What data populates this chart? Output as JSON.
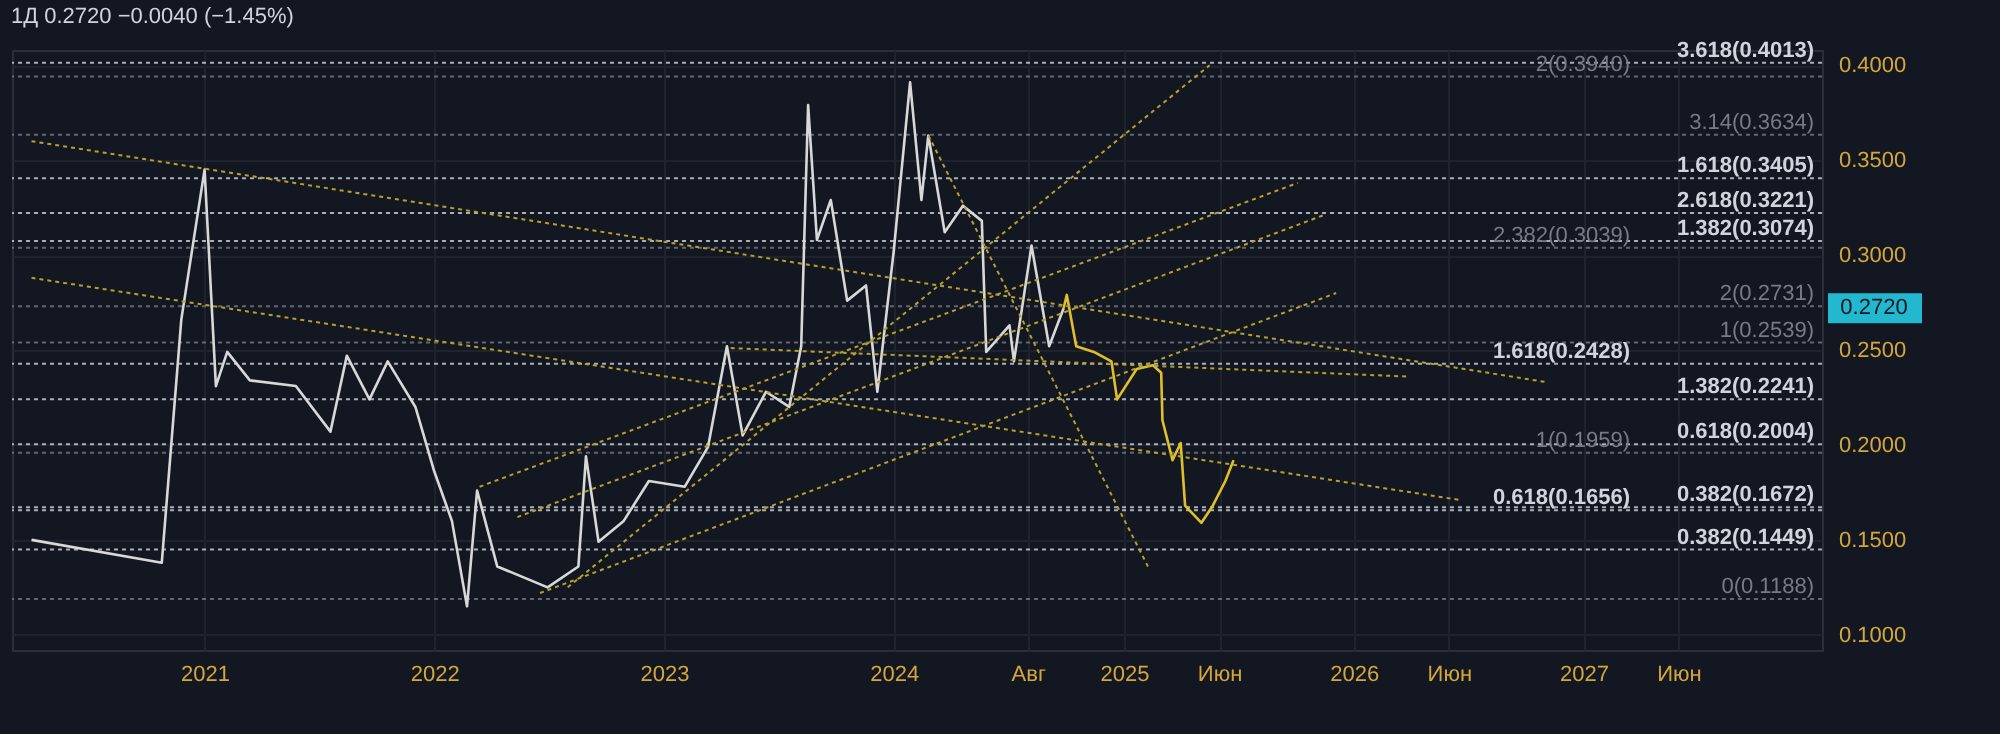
{
  "chart_data": {
    "type": "line",
    "title": "1Д  0.2720  −0.0040 (−1.45%)",
    "xlim": [
      "2020-03-01",
      "2028-01-15"
    ],
    "xticks": [
      {
        "value": "2021-01-01",
        "label": "2021"
      },
      {
        "value": "2022-01-01",
        "label": "2022"
      },
      {
        "value": "2023-01-01",
        "label": "2023"
      },
      {
        "value": "2024-01-01",
        "label": "2024"
      },
      {
        "value": "2024-08-01",
        "label": "Авг"
      },
      {
        "value": "2025-01-01",
        "label": "2025"
      },
      {
        "value": "2025-06-01",
        "label": "Июн"
      },
      {
        "value": "2026-01-01",
        "label": "2026"
      },
      {
        "value": "2026-06-01",
        "label": "Июн"
      },
      {
        "value": "2027-01-01",
        "label": "2027"
      },
      {
        "value": "2027-06-01",
        "label": "Июн"
      }
    ],
    "ylim": [
      0.092,
      0.408
    ],
    "yticks": [
      {
        "value": 0.1,
        "label": "0.1000"
      },
      {
        "value": 0.15,
        "label": "0.1500"
      },
      {
        "value": 0.2,
        "label": "0.2000"
      },
      {
        "value": 0.25,
        "label": "0.2500"
      },
      {
        "value": 0.3,
        "label": "0.3000"
      },
      {
        "value": 0.35,
        "label": "0.3500"
      },
      {
        "value": 0.4,
        "label": "0.4000"
      }
    ],
    "grid": true,
    "series": [
      {
        "color": "#d8d8d8",
        "x": [
          "2020-04-01",
          "2020-10-25",
          "2020-11-25",
          "2021-01-01",
          "2021-01-19",
          "2021-02-06",
          "2021-03-14",
          "2021-05-26",
          "2021-07-20",
          "2021-08-15",
          "2021-09-20",
          "2021-10-19",
          "2021-12-02",
          "2022-01-01",
          "2022-01-29",
          "2022-02-22",
          "2022-03-10",
          "2022-04-11",
          "2022-06-30",
          "2022-08-18",
          "2022-08-30",
          "2022-09-19",
          "2022-10-29",
          "2022-12-08",
          "2023-02-03",
          "2023-03-12",
          "2023-04-11",
          "2023-05-06",
          "2023-06-12",
          "2023-07-19",
          "2023-08-07",
          "2023-08-18",
          "2023-09-01",
          "2023-09-23",
          "2023-10-19",
          "2023-11-18",
          "2023-12-06",
          "2024-01-01",
          "2024-01-27",
          "2024-02-14",
          "2024-02-25",
          "2024-03-22",
          "2024-04-20",
          "2024-05-20",
          "2024-05-27",
          "2024-07-03",
          "2024-07-10",
          "2024-08-07",
          "2024-09-04",
          "2024-09-27"
        ],
        "values": [
          0.15,
          0.138,
          0.266,
          0.345,
          0.231,
          0.249,
          0.234,
          0.231,
          0.207,
          0.247,
          0.224,
          0.244,
          0.22,
          0.186,
          0.16,
          0.115,
          0.176,
          0.136,
          0.125,
          0.136,
          0.194,
          0.149,
          0.16,
          0.181,
          0.178,
          0.199,
          0.252,
          0.205,
          0.228,
          0.22,
          0.252,
          0.379,
          0.308,
          0.329,
          0.276,
          0.284,
          0.228,
          0.302,
          0.391,
          0.329,
          0.363,
          0.312,
          0.326,
          0.318,
          0.249,
          0.263,
          0.244,
          0.305,
          0.252,
          0.272
        ]
      },
      {
        "color": "#e0c02a",
        "x": [
          "2024-09-27",
          "2024-10-02",
          "2024-10-17",
          "2024-11-14",
          "2024-12-12",
          "2024-12-21",
          "2025-01-21",
          "2025-02-16",
          "2025-03-01",
          "2025-03-03",
          "2025-03-19",
          "2025-04-01",
          "2025-04-08",
          "2025-05-04",
          "2025-05-22",
          "2025-06-11",
          "2025-06-24"
        ],
        "values": [
          0.272,
          0.279,
          0.252,
          0.249,
          0.244,
          0.224,
          0.24,
          0.242,
          0.238,
          0.213,
          0.192,
          0.201,
          0.168,
          0.159,
          0.168,
          0.181,
          0.192
        ]
      },
      {
        "color": "#b5a22c",
        "line_style": "dotted",
        "x": [
          "2020-04-01",
          "2026-11-05"
        ],
        "values": [
          0.36,
          0.233
        ]
      },
      {
        "color": "#b5a22c",
        "line_style": "dotted",
        "x": [
          "2020-04-01",
          "2026-06-19"
        ],
        "values": [
          0.288,
          0.171
        ]
      },
      {
        "color": "#b5a22c",
        "line_style": "dotted",
        "x": [
          "2023-04-17",
          "2026-03-27"
        ],
        "values": [
          0.251,
          0.236
        ]
      },
      {
        "color": "#b5a22c",
        "line_style": "dotted",
        "x": [
          "2022-03-14",
          "2025-10-04"
        ],
        "values": [
          0.178,
          0.338
        ]
      },
      {
        "color": "#b5a22c",
        "line_style": "dotted",
        "x": [
          "2022-05-13",
          "2025-11-14"
        ],
        "values": [
          0.162,
          0.321
        ]
      },
      {
        "color": "#b5a22c",
        "line_style": "dotted",
        "x": [
          "2022-06-18",
          "2025-12-04"
        ],
        "values": [
          0.122,
          0.28
        ]
      },
      {
        "color": "#b5a22c",
        "line_style": "dotted",
        "x": [
          "2022-08-01",
          "2025-05-17"
        ],
        "values": [
          0.125,
          0.4
        ]
      },
      {
        "color": "#b5a22c",
        "line_style": "dotted",
        "x": [
          "2024-02-25",
          "2025-02-08"
        ],
        "values": [
          0.363,
          0.136
        ]
      }
    ],
    "ref_lines": [
      {
        "axis": "y",
        "value": 0.4013,
        "label": "3.618(0.4013)",
        "color": "#d1d4dc",
        "line_style": "dotted"
      },
      {
        "axis": "y",
        "value": 0.394,
        "label": "2(0.3940)",
        "color": "#787b86",
        "line_style": "dotted"
      },
      {
        "axis": "y",
        "value": 0.3634,
        "label": "3.14(0.3634)",
        "color": "#787b86",
        "line_style": "dotted"
      },
      {
        "axis": "y",
        "value": 0.3405,
        "label": "1.618(0.3405)",
        "color": "#d1d4dc",
        "line_style": "dotted"
      },
      {
        "axis": "y",
        "value": 0.3221,
        "label": "2.618(0.3221)",
        "color": "#d1d4dc",
        "line_style": "dotted"
      },
      {
        "axis": "y",
        "value": 0.3074,
        "label": "1.382(0.3074)",
        "color": "#d1d4dc",
        "line_style": "dotted"
      },
      {
        "axis": "y",
        "value": 0.3039,
        "label": "2.382(0.3039)",
        "color": "#787b86",
        "line_style": "dotted"
      },
      {
        "axis": "y",
        "value": 0.2731,
        "label": "2(0.2731)",
        "color": "#787b86",
        "line_style": "dotted"
      },
      {
        "axis": "y",
        "value": 0.2539,
        "label": "1(0.2539)",
        "color": "#787b86",
        "line_style": "dotted"
      },
      {
        "axis": "y",
        "value": 0.2428,
        "label": "1.618(0.2428)",
        "color": "#d1d4dc",
        "line_style": "dotted"
      },
      {
        "axis": "y",
        "value": 0.2241,
        "label": "1.382(0.2241)",
        "color": "#d1d4dc",
        "line_style": "dotted"
      },
      {
        "axis": "y",
        "value": 0.2004,
        "label": "0.618(0.2004)",
        "color": "#d1d4dc",
        "line_style": "dotted"
      },
      {
        "axis": "y",
        "value": 0.1959,
        "label": "1(0.1959)",
        "color": "#787b86",
        "line_style": "dotted"
      },
      {
        "axis": "y",
        "value": 0.1672,
        "label": "0.382(0.1672)",
        "color": "#d1d4dc",
        "line_style": "dotted"
      },
      {
        "axis": "y",
        "value": 0.1656,
        "label": "0.618(0.1656)",
        "color": "#d1d4dc",
        "line_style": "dotted"
      },
      {
        "axis": "y",
        "value": 0.1449,
        "label": "0.382(0.1449)",
        "color": "#d1d4dc",
        "line_style": "dotted"
      },
      {
        "axis": "y",
        "value": 0.1188,
        "label": "0(0.1188)",
        "color": "#787b86",
        "line_style": "dotted"
      }
    ],
    "annotations": [
      "0.2720"
    ]
  }
}
